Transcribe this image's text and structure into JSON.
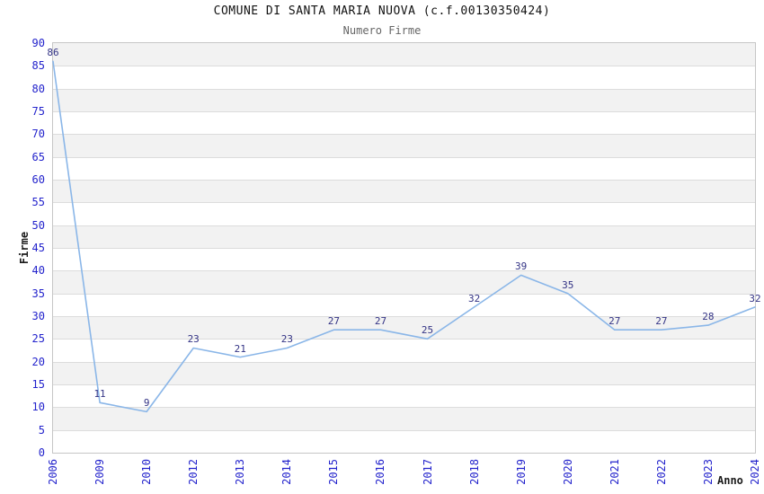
{
  "header": {
    "title": "COMUNE DI SANTA MARIA NUOVA (c.f.00130350424)",
    "subtitle": "Numero Firme"
  },
  "chart_data": {
    "type": "line",
    "title": "COMUNE DI SANTA MARIA NUOVA (c.f.00130350424)",
    "subtitle": "Numero Firme",
    "xlabel": "Anno",
    "ylabel": "Firme",
    "categories": [
      "2006",
      "2009",
      "2010",
      "2012",
      "2013",
      "2014",
      "2015",
      "2016",
      "2017",
      "2018",
      "2019",
      "2020",
      "2021",
      "2022",
      "2023",
      "2024"
    ],
    "values": [
      86,
      11,
      9,
      23,
      21,
      23,
      27,
      27,
      25,
      32,
      39,
      35,
      27,
      27,
      28,
      32
    ],
    "ylim": [
      0,
      90
    ],
    "ytick_step": 5,
    "grid": "horizontal-lines-with-alternating-bands",
    "legend": "none",
    "colors": {
      "line": "#8ab6e8",
      "tick_label": "#2323cc",
      "data_label": "#333385",
      "band_fill": "#f2f2f2",
      "gridline": "#dcdcdc",
      "plot_border": "#c6c6c6",
      "title": "#111111",
      "subtitle": "#666666",
      "axis_label": "#1a1a1a"
    }
  }
}
